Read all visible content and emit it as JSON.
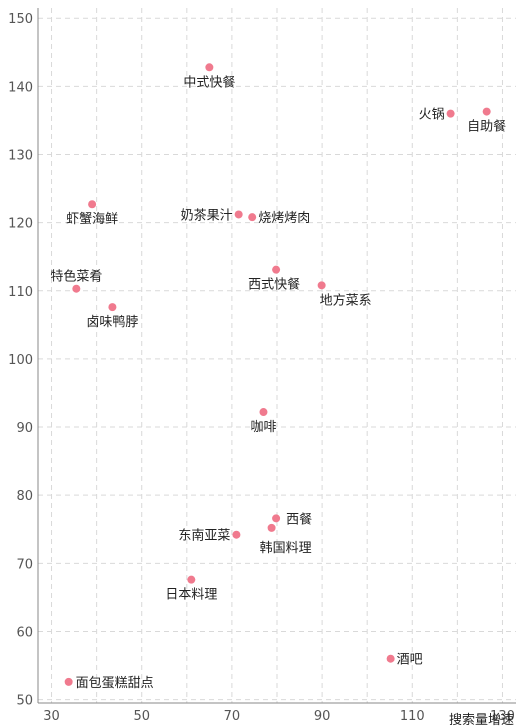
{
  "chart_data": {
    "type": "scatter",
    "title": "",
    "xlabel": "搜索量增速",
    "ylabel": "",
    "xlim": [
      27,
      133
    ],
    "ylim": [
      49.5,
      151.5
    ],
    "xticks": [
      30,
      50,
      70,
      90,
      110,
      130
    ],
    "yticks": [
      50,
      60,
      70,
      80,
      90,
      100,
      110,
      120,
      130,
      140,
      150
    ],
    "grid": true,
    "point_color": "#f07a8e",
    "points": [
      {
        "label": "中式快餐",
        "x": 65,
        "y": 142.8
      },
      {
        "label": "火锅",
        "x": 118.5,
        "y": 136
      },
      {
        "label": "自助餐",
        "x": 126.5,
        "y": 136.3
      },
      {
        "label": "虾蟹海鲜",
        "x": 39,
        "y": 122.7
      },
      {
        "label": "奶茶果汁",
        "x": 71.5,
        "y": 121.2
      },
      {
        "label": "烧烤烤肉",
        "x": 74.5,
        "y": 120.8
      },
      {
        "label": "西式快餐",
        "x": 79.8,
        "y": 113.1
      },
      {
        "label": "地方菜系",
        "x": 89.9,
        "y": 110.8
      },
      {
        "label": "特色菜肴",
        "x": 35.5,
        "y": 110.3
      },
      {
        "label": "卤味鸭脖",
        "x": 43.5,
        "y": 107.6
      },
      {
        "label": "咖啡",
        "x": 77,
        "y": 92.2
      },
      {
        "label": "西餐",
        "x": 79.8,
        "y": 76.6
      },
      {
        "label": "东南亚菜",
        "x": 71,
        "y": 74.2
      },
      {
        "label": "韩国料理",
        "x": 78.8,
        "y": 75.2
      },
      {
        "label": "日本料理",
        "x": 61,
        "y": 67.6
      },
      {
        "label": "酒吧",
        "x": 105.2,
        "y": 56
      },
      {
        "label": "面包蛋糕甜点",
        "x": 33.8,
        "y": 52.6
      }
    ]
  }
}
